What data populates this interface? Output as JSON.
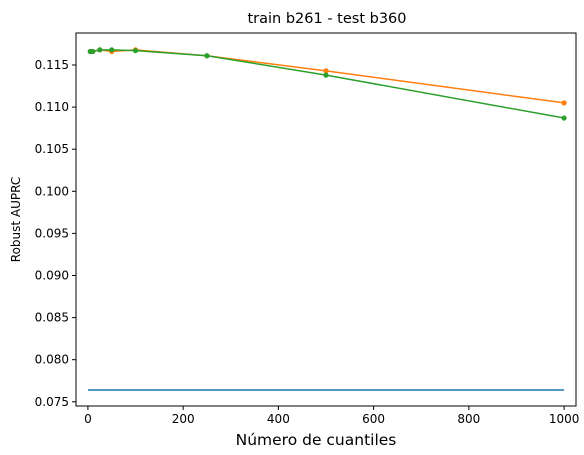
{
  "chart_data": {
    "type": "line",
    "title": "train b261 - test b360",
    "xlabel": "Número de cuantiles",
    "ylabel": "Robust AUPRC",
    "xlim": [
      -25,
      1025
    ],
    "ylim": [
      0.0745,
      0.1188
    ],
    "x_ticks": [
      0,
      200,
      400,
      600,
      800,
      1000
    ],
    "x_tick_labels": [
      "0",
      "200",
      "400",
      "600",
      "800",
      "1000"
    ],
    "y_ticks": [
      0.075,
      0.08,
      0.085,
      0.09,
      0.095,
      0.1,
      0.105,
      0.11,
      0.115
    ],
    "y_tick_labels": [
      "0.075",
      "0.080",
      "0.085",
      "0.090",
      "0.095",
      "0.100",
      "0.105",
      "0.110",
      "0.115"
    ],
    "grid": false,
    "series": [
      {
        "color": "#1f77b4",
        "markers": false,
        "x": [
          0,
          1000
        ],
        "y": [
          0.0764,
          0.0764
        ]
      },
      {
        "color": "#ff7f0e",
        "markers": true,
        "x": [
          5,
          10,
          25,
          50,
          100,
          250,
          500,
          1000
        ],
        "y": [
          0.1166,
          0.1166,
          0.1168,
          0.1166,
          0.1168,
          0.1161,
          0.1143,
          0.1105
        ]
      },
      {
        "color": "#2ca02c",
        "markers": true,
        "x": [
          5,
          10,
          25,
          50,
          100,
          250,
          500,
          1000
        ],
        "y": [
          0.1166,
          0.1166,
          0.1168,
          0.1168,
          0.1167,
          0.1161,
          0.1138,
          0.1087
        ]
      }
    ]
  }
}
